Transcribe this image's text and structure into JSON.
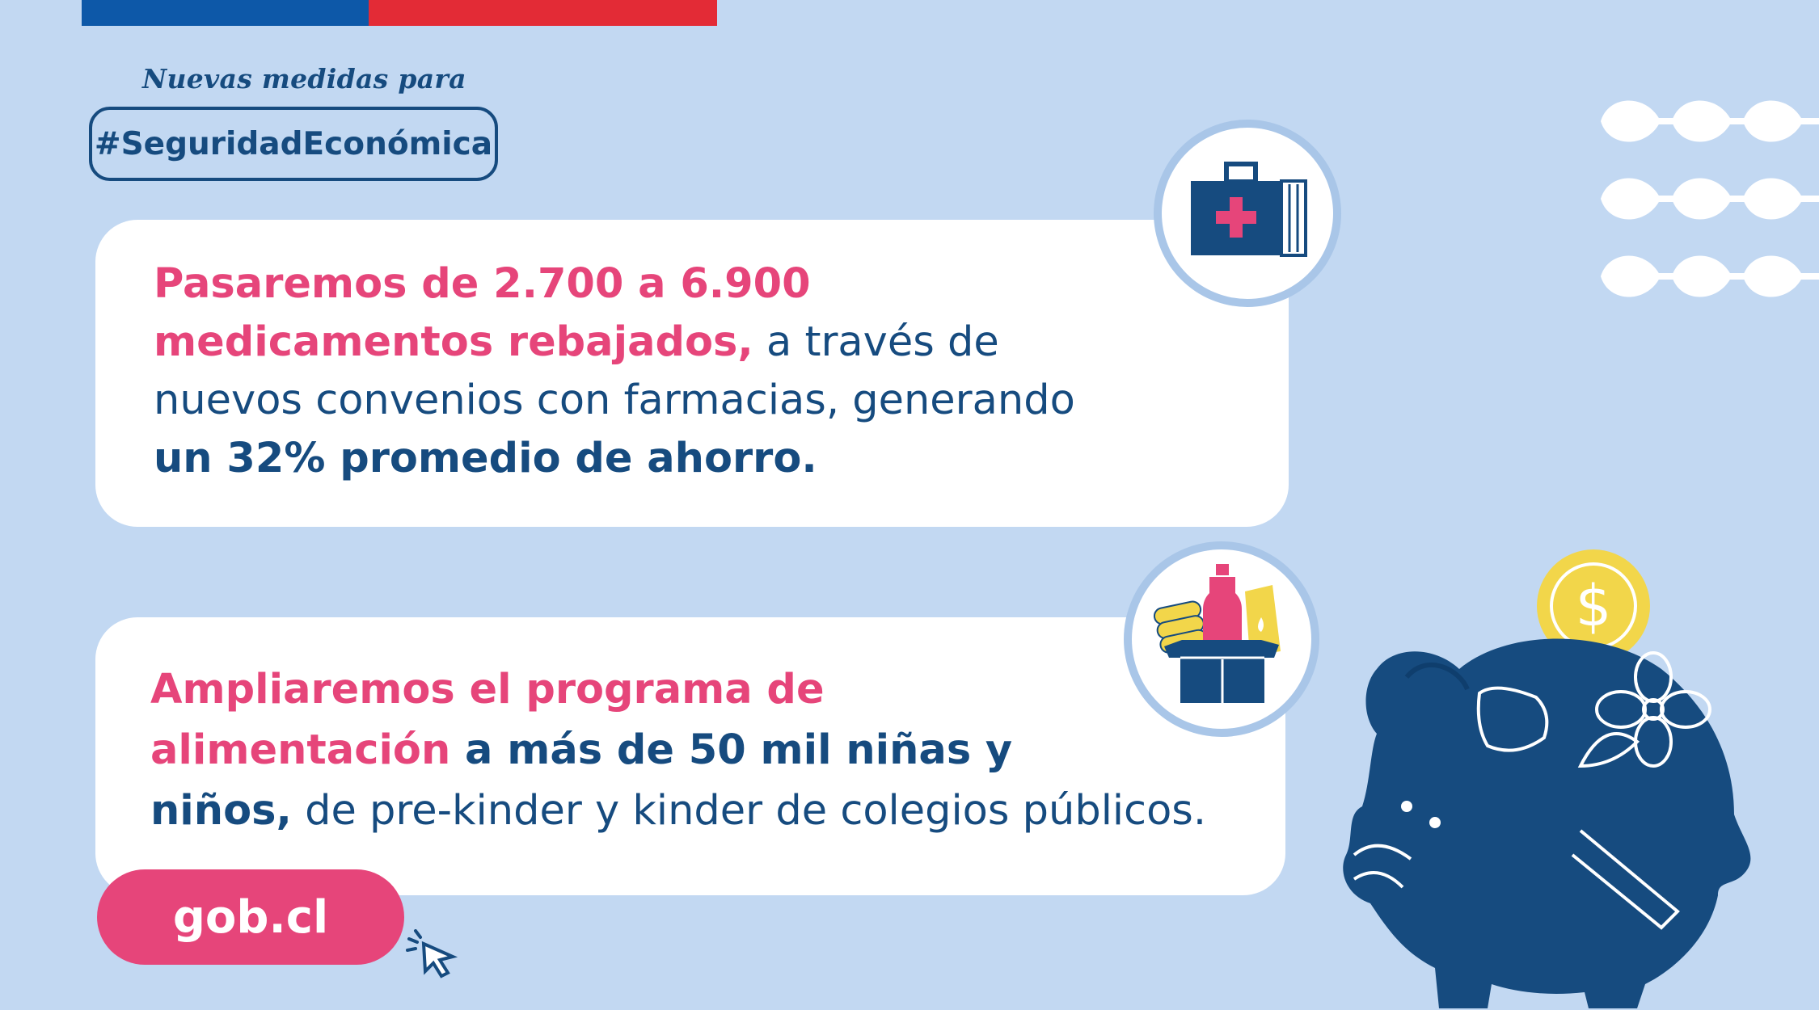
{
  "header": {
    "kicker": "Nuevas medidas para",
    "hashtag": "#SeguridadEconómica"
  },
  "cards": [
    {
      "icon": "medical-kit-icon",
      "segments": [
        {
          "text": "Pasaremos de 2.700 a 6.900",
          "style": "pink",
          "break": true
        },
        {
          "text": "medicamentos rebajados,",
          "style": "pink"
        },
        {
          "text": " a través de",
          "style": "light",
          "break": true
        },
        {
          "text": "nuevos convenios con farmacias, generando",
          "style": "light",
          "break": true
        },
        {
          "text": "un 32% promedio de ahorro.",
          "style": "navyb"
        }
      ]
    },
    {
      "icon": "food-box-icon",
      "segments": [
        {
          "text": "Ampliaremos el programa de",
          "style": "pink",
          "break": true
        },
        {
          "text": "alimentación",
          "style": "pink"
        },
        {
          "text": " a más de 50 mil niñas y",
          "style": "navyb",
          "break": true
        },
        {
          "text": "niños,",
          "style": "navyb"
        },
        {
          "text": " de pre-kinder y kinder de colegios públicos.",
          "style": "light"
        }
      ]
    }
  ],
  "cta": {
    "label": "gob.cl",
    "icon": "cursor-click-icon"
  },
  "decor": {
    "pig_icon": "piggy-bank-icon",
    "coin_symbol": "$",
    "dots_icon": "dot-pattern-icon"
  },
  "colors": {
    "background": "#c2d8f2",
    "navy": "#164b7f",
    "pink": "#e6457a",
    "flag_blue": "#0d58a8",
    "flag_red": "#e32b36",
    "coin_yellow": "#f2d64a"
  }
}
